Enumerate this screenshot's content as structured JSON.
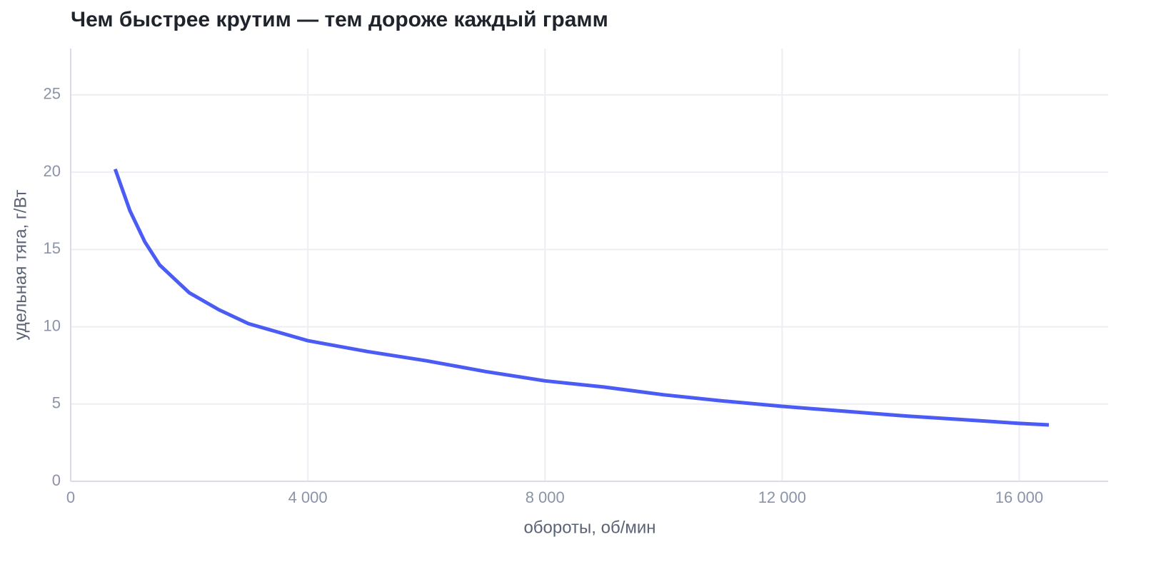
{
  "chart_data": {
    "type": "line",
    "title": "Чем быстрее крутим — тем дороже каждый грамм",
    "x_label": "обороты, об/мин",
    "y_label": "удельная тяга, г/Вт",
    "x": [
      750,
      1000,
      1250,
      1500,
      2000,
      2500,
      3000,
      4000,
      5000,
      6000,
      7000,
      8000,
      9000,
      10000,
      11000,
      12000,
      13000,
      14000,
      15000,
      16000,
      16500
    ],
    "series": [
      {
        "color": "#4b5cf5",
        "values": [
          20.2,
          17.5,
          15.5,
          14.0,
          12.2,
          11.1,
          10.2,
          9.1,
          8.4,
          7.8,
          7.1,
          6.5,
          6.1,
          5.6,
          5.2,
          4.85,
          4.55,
          4.25,
          4.0,
          3.75,
          3.65
        ]
      }
    ],
    "xlim": [
      0,
      17500
    ],
    "ylim": [
      0,
      28
    ],
    "xticks": [
      0,
      {
        "value": 4000,
        "label": "4 000"
      },
      {
        "value": 8000,
        "label": "8 000"
      },
      {
        "value": 12000,
        "label": "12 000"
      },
      {
        "value": 16000,
        "label": "16 000"
      }
    ],
    "yticks": [
      0,
      5,
      10,
      15,
      20,
      25
    ],
    "grid": true
  }
}
